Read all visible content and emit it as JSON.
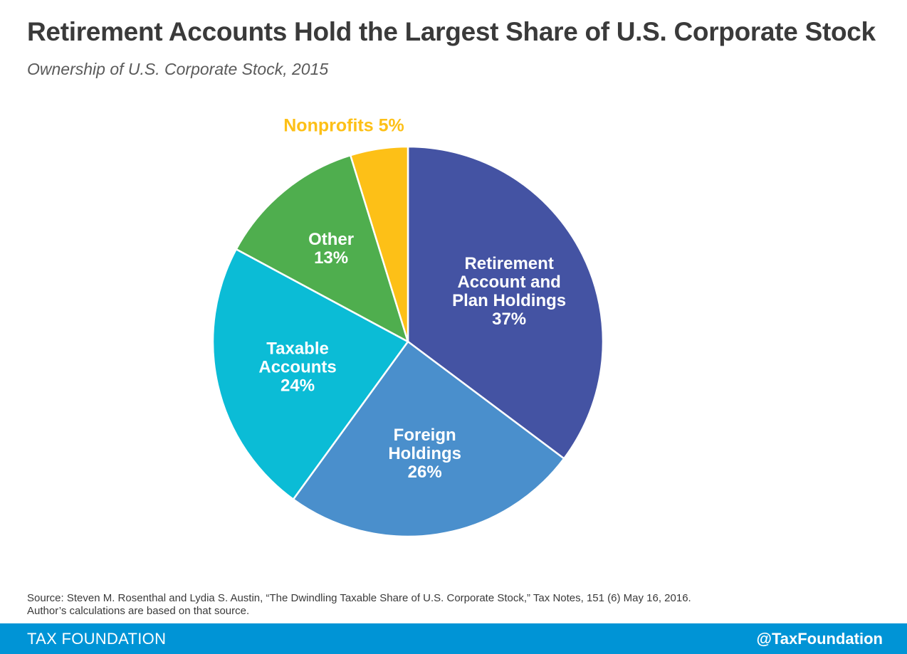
{
  "title": "Retirement Accounts Hold the Largest Share of U.S. Corporate Stock",
  "subtitle": "Ownership of U.S. Corporate Stock, 2015",
  "chart_data": {
    "type": "pie",
    "title": "Retirement Accounts Hold the Largest Share of U.S. Corporate Stock",
    "subtitle": "Ownership of U.S. Corporate Stock, 2015",
    "unit": "%",
    "start": "12 o'clock",
    "direction": "clockwise",
    "slices": [
      {
        "name": "Retirement Account and Plan Holdings",
        "label_lines": [
          "Retirement",
          "Account and",
          "Plan Holdings",
          "37%"
        ],
        "value": 37,
        "color": "#4453a3",
        "label_position": "inside"
      },
      {
        "name": "Foreign Holdings",
        "label_lines": [
          "Foreign",
          "Holdings",
          "26%"
        ],
        "value": 26,
        "color": "#4a8fcc",
        "label_position": "inside"
      },
      {
        "name": "Taxable Accounts",
        "label_lines": [
          "Taxable",
          "Accounts",
          "24%"
        ],
        "value": 24,
        "color": "#0bbcd6",
        "label_position": "inside"
      },
      {
        "name": "Other",
        "label_lines": [
          "Other",
          "13%"
        ],
        "value": 13,
        "color": "#4fae4e",
        "label_position": "inside"
      },
      {
        "name": "Nonprofits",
        "label_lines": [
          "Nonprofits 5%"
        ],
        "value": 5,
        "color": "#fdc017",
        "label_position": "outside"
      }
    ]
  },
  "source": {
    "line1": "Source: Steven M. Rosenthal and Lydia S. Austin, “The Dwindling Taxable Share of U.S. Corporate Stock,” Tax Notes, 151 (6) May 16, 2016.",
    "line2": "Author’s calculations are based on that source."
  },
  "footer": {
    "left": "TAX FOUNDATION",
    "right": "@TaxFoundation"
  }
}
